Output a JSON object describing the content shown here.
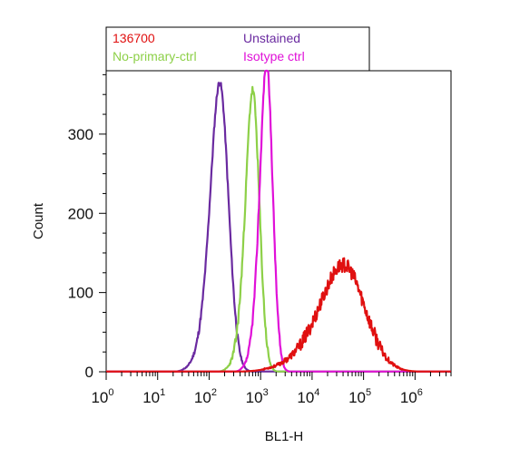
{
  "chart_data": {
    "type": "line",
    "title": "",
    "xlabel": "BL1-H",
    "ylabel": "Count",
    "xscale": "log",
    "xlim": [
      1,
      5000000
    ],
    "ylim": [
      0,
      380
    ],
    "x_ticks": [
      {
        "base": "10",
        "exp": "0",
        "value": 1
      },
      {
        "base": "10",
        "exp": "1",
        "value": 10
      },
      {
        "base": "10",
        "exp": "2",
        "value": 100
      },
      {
        "base": "10",
        "exp": "3",
        "value": 1000
      },
      {
        "base": "10",
        "exp": "4",
        "value": 10000
      },
      {
        "base": "10",
        "exp": "5",
        "value": 100000
      },
      {
        "base": "10",
        "exp": "6",
        "value": 1000000
      }
    ],
    "y_ticks": [
      "0",
      "100",
      "200",
      "300"
    ],
    "y_tick_values": [
      0,
      100,
      200,
      300
    ],
    "legend_position": "top",
    "series": [
      {
        "name": "Unstained",
        "color": "#6a2aa0",
        "peak_x": 160,
        "peak_y": 365,
        "width_decades": 0.17,
        "left_tail_decades": 0.7,
        "noise": 4,
        "seed": 11
      },
      {
        "name": "No-primary-ctrl",
        "color": "#8dd048",
        "peak_x": 700,
        "peak_y": 355,
        "width_decades": 0.13,
        "left_tail_decades": 0.55,
        "noise": 6,
        "seed": 23
      },
      {
        "name": "Isotype ctrl",
        "color": "#e010d8",
        "peak_x": 1300,
        "peak_y": 390,
        "width_decades": 0.12,
        "left_tail_decades": 0.5,
        "noise": 5,
        "seed": 37
      },
      {
        "name": "136700",
        "color": "#e01010",
        "peak_x": 40000,
        "peak_y": 135,
        "width_decades": 0.42,
        "left_tail_decades": 1.5,
        "noise": 9,
        "seed": 53
      }
    ],
    "legend": {
      "left": [
        {
          "label": "136700",
          "color": "#e01010"
        },
        {
          "label": "No-primary-ctrl",
          "color": "#8dd048"
        }
      ],
      "right": [
        {
          "label": "Unstained",
          "color": "#6a2aa0"
        },
        {
          "label": "Isotype ctrl",
          "color": "#e010d8"
        }
      ]
    }
  }
}
